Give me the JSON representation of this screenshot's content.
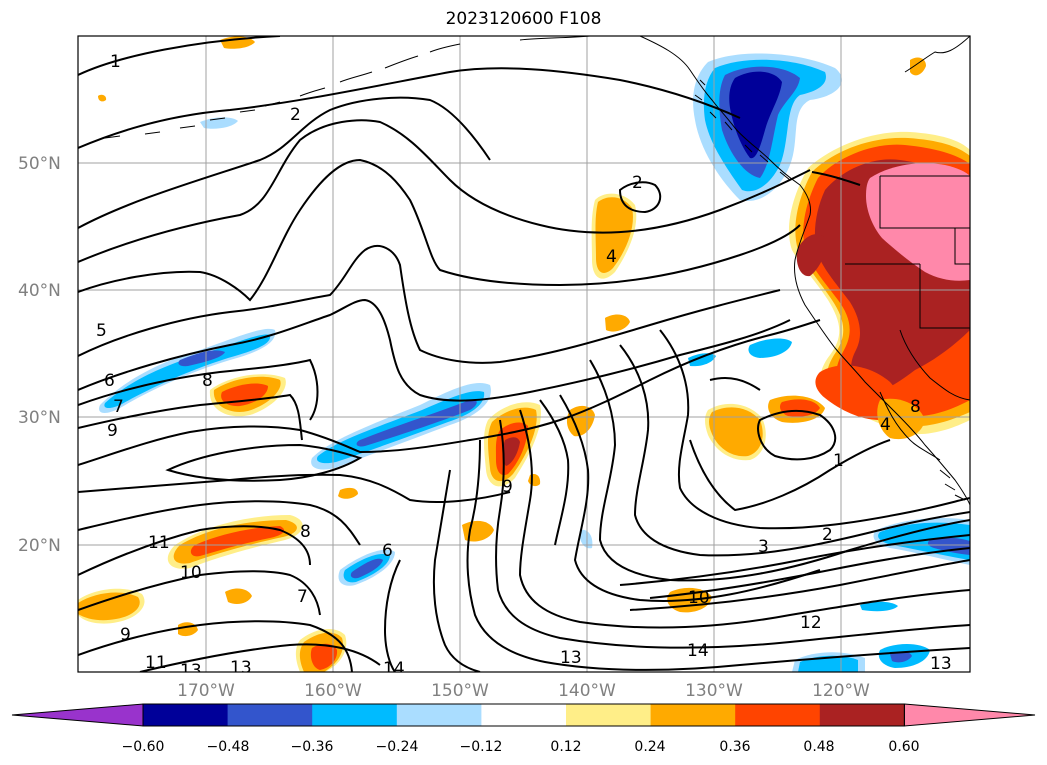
{
  "title": "2023120600 F108",
  "lat_labels": [
    "50°N",
    "40°N",
    "30°N",
    "20°N"
  ],
  "lon_labels": [
    "170°W",
    "160°W",
    "150°W",
    "140°W",
    "130°W",
    "120°W"
  ],
  "colorbar": {
    "colors": [
      "#9933cc",
      "#000099",
      "#3355cc",
      "#00bbff",
      "#aaddff",
      "#ffffff",
      "#ffee88",
      "#ffaa00",
      "#ff4400",
      "#aa2222",
      "#ff88aa"
    ],
    "ticks": [
      "−0.60",
      "−0.48",
      "−0.36",
      "−0.24",
      "−0.12",
      "0.12",
      "0.24",
      "0.36",
      "0.48",
      "0.60"
    ]
  },
  "contour_labels": [
    "1",
    "2",
    "2",
    "4",
    "5",
    "6",
    "7",
    "8",
    "9",
    "9",
    "10",
    "11",
    "11",
    "13",
    "13",
    "14",
    "13",
    "14",
    "12",
    "10",
    "3",
    "2",
    "1",
    "8",
    "7",
    "6",
    "9",
    "13",
    "4",
    "8"
  ]
}
